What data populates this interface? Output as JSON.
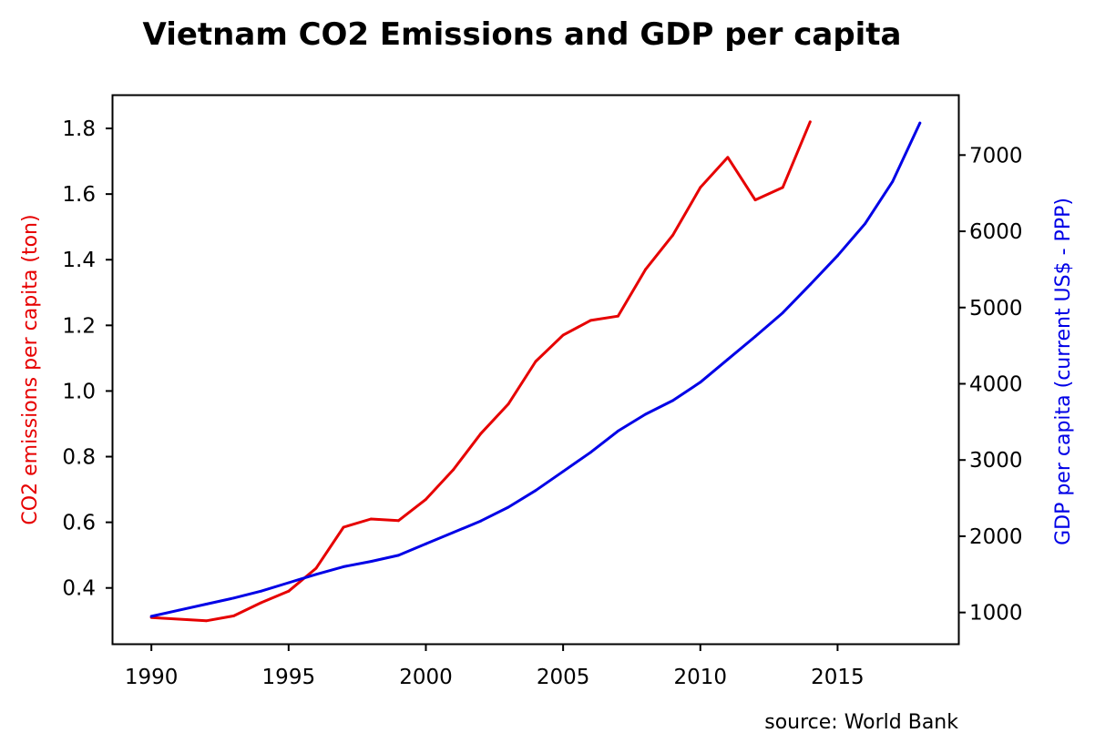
{
  "chart_data": {
    "type": "line",
    "title": "Vietnam CO2 Emissions and GDP per capita",
    "xlabel": "",
    "x_ticks": [
      1990,
      1995,
      2000,
      2005,
      2010,
      2015
    ],
    "xlim": [
      1988.6,
      2019.4
    ],
    "left_axis": {
      "label": "CO2 emissions per capita (ton)",
      "color": "#e60000",
      "ylim": [
        0.23,
        1.9
      ],
      "ticks": [
        "0.4",
        "0.6",
        "0.8",
        "1.0",
        "1.2",
        "1.4",
        "1.6",
        "1.8"
      ]
    },
    "right_axis": {
      "label": "GDP per capita (current US$ - PPP)",
      "color": "#0000e6",
      "ylim": [
        590,
        7780
      ],
      "ticks": [
        "1000",
        "2000",
        "3000",
        "4000",
        "5000",
        "6000",
        "7000"
      ]
    },
    "series": [
      {
        "axis": "left",
        "color": "#e60000",
        "x": [
          1990,
          1991,
          1992,
          1993,
          1994,
          1995,
          1996,
          1997,
          1998,
          1999,
          2000,
          2001,
          2002,
          2003,
          2004,
          2005,
          2006,
          2007,
          2008,
          2009,
          2010,
          2011,
          2012,
          2013,
          2014
        ],
        "values": [
          0.31,
          0.305,
          0.3,
          0.315,
          0.355,
          0.39,
          0.46,
          0.585,
          0.61,
          0.605,
          0.67,
          0.76,
          0.87,
          0.96,
          1.09,
          1.17,
          1.215,
          1.228,
          1.37,
          1.475,
          1.62,
          1.712,
          1.582,
          1.62,
          1.82
        ]
      },
      {
        "axis": "right",
        "color": "#0000e6",
        "x": [
          1990,
          1991,
          1992,
          1993,
          1994,
          1995,
          1996,
          1997,
          1998,
          1999,
          2000,
          2001,
          2002,
          2003,
          2004,
          2005,
          2006,
          2007,
          2008,
          2009,
          2010,
          2011,
          2012,
          2013,
          2014,
          2015,
          2016,
          2017,
          2018
        ],
        "values": [
          950,
          1030,
          1110,
          1190,
          1280,
          1390,
          1500,
          1600,
          1670,
          1750,
          1900,
          2050,
          2200,
          2380,
          2600,
          2850,
          3100,
          3380,
          3600,
          3780,
          4020,
          4320,
          4620,
          4930,
          5300,
          5680,
          6100,
          6650,
          7420
        ]
      }
    ],
    "source": "source: World Bank",
    "grid": false
  }
}
